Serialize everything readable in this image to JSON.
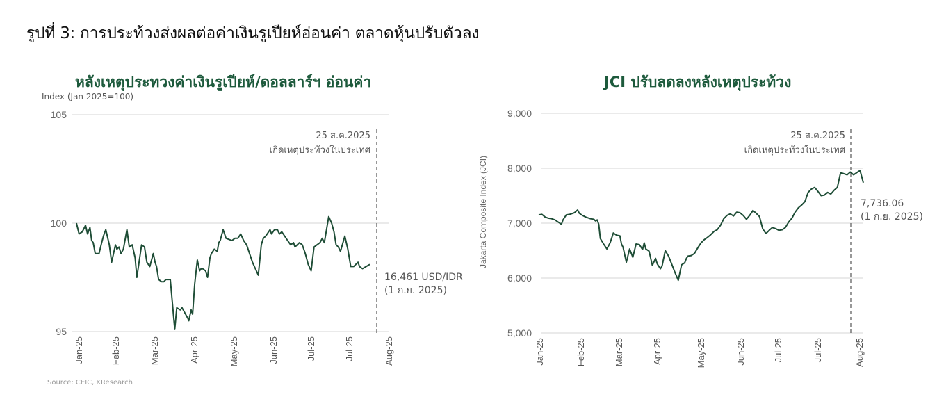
{
  "figure": {
    "title": "รูปที่ 3: การประท้วงส่งผลต่อค่าเงินรูเปียห์อ่อนค่า ตลาดหุ้นปรับตัวลง",
    "source": "Source: CEIC, KResearch",
    "line_color": "#1e4d36",
    "title_color": "#1d5a3c",
    "grid_color": "#dddddd"
  },
  "chart_data": [
    {
      "type": "line",
      "title": "หลังเหตุประทวงค่าเงินรูเปียห์/ดอลลาร์ฯ อ่อนค่า",
      "ylabel": "Index (Jan 2025=100)",
      "xlabel": "",
      "ylim": [
        95,
        105
      ],
      "yticks": [
        "105",
        "100",
        "95"
      ],
      "ytick_values": [
        105,
        100,
        95
      ],
      "categories": [
        "Jan-25",
        "Feb-25",
        "Mar-25",
        "Apr-25",
        "May-25",
        "Jun-25",
        "Jul-25",
        "Jul-25",
        "Aug-25"
      ],
      "grid": true,
      "legend": null,
      "event_line": {
        "label_date": "25 ส.ค.2025",
        "label_text": "เกิดเหตุประท้วงในประเทศ"
      },
      "end_label": {
        "value": "16,461 USD/IDR",
        "date": "(1 ก.ย. 2025)"
      },
      "series": [
        {
          "name": "USD/IDR index (inverted, Jan 2025=100)",
          "points_x_frac": [
            0.0,
            0.009,
            0.02,
            0.031,
            0.038,
            0.046,
            0.052,
            0.057,
            0.064,
            0.077,
            0.086,
            0.092,
            0.1,
            0.112,
            0.12,
            0.133,
            0.138,
            0.145,
            0.152,
            0.16,
            0.172,
            0.18,
            0.19,
            0.2,
            0.206,
            0.222,
            0.232,
            0.24,
            0.25,
            0.262,
            0.268,
            0.273,
            0.28,
            0.29,
            0.298,
            0.305,
            0.312,
            0.32,
            0.335,
            0.342,
            0.354,
            0.36,
            0.38,
            0.383,
            0.386,
            0.391,
            0.396,
            0.403,
            0.412,
            0.42,
            0.425,
            0.43,
            0.44,
            0.447,
            0.455,
            0.46,
            0.47,
            0.48,
            0.485,
            0.49,
            0.5,
            0.51,
            0.53,
            0.54,
            0.55,
            0.56,
            0.57,
            0.58,
            0.6,
            0.62,
            0.63,
            0.637,
            0.645,
            0.66,
            0.665,
            0.675,
            0.685,
            0.692,
            0.7,
            0.72,
            0.73,
            0.74,
            0.745,
            0.76,
            0.77,
            0.78,
            0.79,
            0.8,
            0.81,
            0.83,
            0.838,
            0.845,
            0.86,
            0.87,
            0.878,
            0.885,
            0.893,
            0.9,
            0.915,
            0.925,
            0.93,
            0.935,
            0.945,
            0.96,
            0.965,
            0.975,
            1.0
          ],
          "values": [
            100.0,
            99.5,
            99.6,
            99.9,
            99.5,
            99.8,
            99.2,
            99.1,
            98.6,
            98.6,
            99.1,
            99.4,
            99.7,
            99.0,
            98.2,
            99.0,
            98.8,
            98.9,
            98.6,
            98.8,
            99.7,
            98.9,
            99.0,
            98.4,
            97.5,
            99.0,
            98.9,
            98.2,
            98.0,
            98.6,
            98.2,
            98.0,
            97.4,
            97.3,
            97.3,
            97.4,
            97.4,
            97.4,
            95.1,
            96.1,
            96.0,
            96.1,
            95.6,
            95.5,
            95.7,
            96.0,
            95.8,
            97.2,
            98.3,
            97.8,
            97.9,
            97.9,
            97.8,
            97.5,
            98.4,
            98.6,
            98.8,
            98.7,
            99.1,
            99.2,
            99.7,
            99.3,
            99.2,
            99.3,
            99.3,
            99.5,
            99.2,
            99.0,
            98.2,
            97.6,
            99.0,
            99.3,
            99.4,
            99.7,
            99.5,
            99.7,
            99.7,
            99.5,
            99.6,
            99.2,
            99.0,
            99.1,
            98.9,
            99.1,
            99.0,
            98.6,
            98.1,
            97.8,
            98.9,
            99.1,
            99.3,
            99.1,
            100.3,
            100.0,
            99.6,
            99.0,
            98.9,
            98.7,
            99.4,
            98.8,
            98.4,
            98.0,
            98.0,
            98.2,
            98.0,
            97.9,
            98.1
          ]
        }
      ]
    },
    {
      "type": "line",
      "title": "JCI ปรับลดลงหลังเหตุประท้วง",
      "ylabel": "Jakarta Composite Index (JCI)",
      "xlabel": "",
      "ylim": [
        5000,
        9000
      ],
      "yticks": [
        "9,000",
        "8,000",
        "7,000",
        "6,000",
        "5,000"
      ],
      "ytick_values": [
        9000,
        8000,
        7000,
        6000,
        5000
      ],
      "categories": [
        "Jan-25",
        "Feb-25",
        "Mar-25",
        "Apr-25",
        "May-25",
        "Jun-25",
        "Jul-25",
        "Jul-25",
        "Aug-25"
      ],
      "grid": true,
      "legend": null,
      "event_line": {
        "label_date": "25 ส.ค.2025",
        "label_text": "เกิดเหตุประท้วงในประเทศ"
      },
      "end_label": {
        "value": "7,736.06",
        "date": "(1 ก.ย. 2025)"
      },
      "series": [
        {
          "name": "JCI",
          "points_x_frac": [
            0.0,
            0.01,
            0.02,
            0.03,
            0.04,
            0.05,
            0.06,
            0.07,
            0.075,
            0.085,
            0.095,
            0.11,
            0.12,
            0.125,
            0.135,
            0.145,
            0.16,
            0.17,
            0.175,
            0.18,
            0.185,
            0.19,
            0.2,
            0.21,
            0.22,
            0.23,
            0.24,
            0.25,
            0.255,
            0.26,
            0.27,
            0.28,
            0.29,
            0.3,
            0.31,
            0.32,
            0.325,
            0.33,
            0.34,
            0.35,
            0.36,
            0.365,
            0.375,
            0.38,
            0.39,
            0.4,
            0.41,
            0.42,
            0.43,
            0.44,
            0.45,
            0.455,
            0.46,
            0.47,
            0.48,
            0.49,
            0.5,
            0.51,
            0.52,
            0.53,
            0.54,
            0.55,
            0.56,
            0.57,
            0.58,
            0.59,
            0.6,
            0.61,
            0.62,
            0.63,
            0.64,
            0.65,
            0.66,
            0.67,
            0.68,
            0.69,
            0.7,
            0.71,
            0.72,
            0.73,
            0.74,
            0.75,
            0.76,
            0.77,
            0.78,
            0.79,
            0.8,
            0.81,
            0.82,
            0.83,
            0.84,
            0.85,
            0.86,
            0.87,
            0.88,
            0.89,
            0.9,
            0.91,
            0.92,
            0.93,
            0.94,
            0.95,
            0.96,
            0.97,
            0.98,
            0.99,
            1.0
          ],
          "values": [
            7150,
            7160,
            7110,
            7090,
            7080,
            7060,
            7020,
            6980,
            7060,
            7150,
            7160,
            7190,
            7240,
            7180,
            7140,
            7110,
            7080,
            7070,
            7040,
            7060,
            6980,
            6720,
            6620,
            6530,
            6640,
            6820,
            6780,
            6770,
            6620,
            6560,
            6290,
            6530,
            6380,
            6620,
            6610,
            6520,
            6640,
            6530,
            6490,
            6230,
            6360,
            6260,
            6170,
            6220,
            6500,
            6400,
            6250,
            6100,
            5960,
            6240,
            6280,
            6360,
            6400,
            6410,
            6450,
            6550,
            6640,
            6700,
            6740,
            6790,
            6850,
            6880,
            6960,
            7080,
            7140,
            7170,
            7130,
            7200,
            7190,
            7140,
            7070,
            7140,
            7230,
            7180,
            7120,
            6900,
            6810,
            6870,
            6920,
            6900,
            6870,
            6880,
            6920,
            7020,
            7090,
            7200,
            7280,
            7330,
            7390,
            7560,
            7620,
            7650,
            7580,
            7500,
            7510,
            7560,
            7530,
            7600,
            7650,
            7920,
            7900,
            7880,
            7930,
            7880,
            7920,
            7960,
            7736.06
          ]
        }
      ]
    }
  ]
}
